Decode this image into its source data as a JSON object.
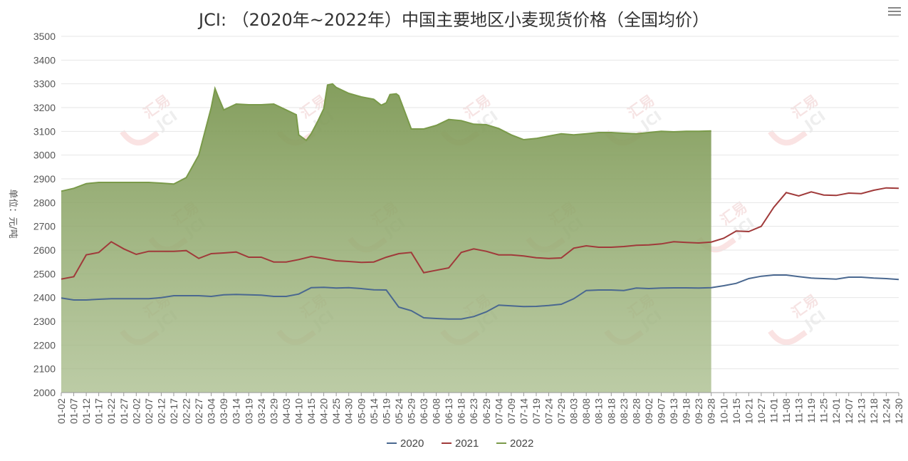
{
  "chart_data": {
    "type": "line",
    "title": "JCI: （2020年~2022年）中国主要地区小麦现货价格（全国均价）",
    "ylabel": "单位：元/吨",
    "xlabel": "",
    "ylim": [
      2000,
      3500
    ],
    "yticks": [
      2000,
      2100,
      2200,
      2300,
      2400,
      2500,
      2600,
      2700,
      2800,
      2900,
      3000,
      3100,
      3200,
      3300,
      3400,
      3500
    ],
    "grid": true,
    "legend_position": "bottom-center",
    "xlabels": [
      "01-02",
      "01-07",
      "01-12",
      "01-17",
      "01-22",
      "01-27",
      "02-02",
      "02-07",
      "02-12",
      "02-17",
      "02-22",
      "02-27",
      "03-04",
      "03-09",
      "03-14",
      "03-19",
      "03-24",
      "03-29",
      "04-03",
      "04-10",
      "04-15",
      "04-20",
      "04-25",
      "04-30",
      "05-09",
      "05-14",
      "05-19",
      "05-24",
      "05-29",
      "06-03",
      "06-08",
      "06-13",
      "06-18",
      "06-23",
      "06-29",
      "07-04",
      "07-09",
      "07-14",
      "07-19",
      "07-24",
      "07-29",
      "08-03",
      "08-08",
      "08-13",
      "08-18",
      "08-23",
      "08-28",
      "09-02",
      "09-07",
      "09-13",
      "09-18",
      "09-23",
      "09-28",
      "10-10",
      "10-15",
      "10-21",
      "10-27",
      "11-01",
      "11-08",
      "11-13",
      "11-19",
      "11-25",
      "12-01",
      "12-07",
      "12-13",
      "12-18",
      "12-24",
      "12-30"
    ],
    "series": [
      {
        "name": "2020",
        "color": "#4a6890",
        "style": "line",
        "x": [
          0,
          1,
          2,
          3,
          4,
          5,
          6,
          7,
          8,
          9,
          10,
          11,
          12,
          13,
          14,
          15,
          16,
          17,
          18,
          19,
          20,
          21,
          22,
          23,
          24,
          25,
          26,
          27,
          28,
          29,
          30,
          31,
          32,
          33,
          34,
          35,
          36,
          37,
          38,
          39,
          40,
          41,
          42,
          43,
          44,
          45,
          46,
          47,
          48,
          49,
          50,
          51,
          52,
          53,
          54,
          55,
          56,
          57,
          58,
          59,
          60,
          61,
          62,
          63,
          64,
          65,
          66,
          67
        ],
        "values": [
          2398,
          2390,
          2390,
          2393,
          2395,
          2395,
          2395,
          2395,
          2400,
          2408,
          2408,
          2408,
          2405,
          2412,
          2413,
          2412,
          2410,
          2405,
          2405,
          2415,
          2442,
          2443,
          2440,
          2442,
          2438,
          2433,
          2432,
          2360,
          2345,
          2315,
          2312,
          2310,
          2310,
          2320,
          2340,
          2368,
          2365,
          2362,
          2363,
          2367,
          2372,
          2395,
          2430,
          2432,
          2432,
          2430,
          2440,
          2438,
          2440,
          2441,
          2441,
          2440,
          2442,
          2450,
          2460,
          2480,
          2490,
          2495,
          2495,
          2488,
          2482,
          2480,
          2478,
          2486,
          2486,
          2482,
          2480,
          2476
        ]
      },
      {
        "name": "2021",
        "color": "#a03a3a",
        "style": "line",
        "x": [
          0,
          1,
          2,
          3,
          4,
          5,
          6,
          7,
          8,
          9,
          10,
          11,
          12,
          13,
          14,
          15,
          16,
          17,
          18,
          19,
          20,
          21,
          22,
          23,
          24,
          25,
          26,
          27,
          28,
          29,
          30,
          31,
          32,
          33,
          34,
          35,
          36,
          37,
          38,
          39,
          40,
          41,
          42,
          43,
          44,
          45,
          46,
          47,
          48,
          49,
          50,
          51,
          52,
          53,
          54,
          55,
          56,
          57,
          58,
          59,
          60,
          61,
          62,
          63,
          64,
          65,
          66,
          67
        ],
        "values": [
          2478,
          2488,
          2580,
          2590,
          2635,
          2605,
          2582,
          2595,
          2595,
          2595,
          2598,
          2565,
          2585,
          2588,
          2592,
          2570,
          2570,
          2550,
          2550,
          2560,
          2573,
          2565,
          2555,
          2552,
          2548,
          2550,
          2570,
          2585,
          2590,
          2505,
          2515,
          2525,
          2590,
          2605,
          2595,
          2580,
          2580,
          2575,
          2568,
          2565,
          2567,
          2608,
          2618,
          2612,
          2612,
          2615,
          2620,
          2622,
          2626,
          2635,
          2632,
          2630,
          2634,
          2650,
          2680,
          2678,
          2700,
          2780,
          2842,
          2828,
          2845,
          2832,
          2830,
          2840,
          2838,
          2852,
          2862,
          2860
        ]
      },
      {
        "name": "2022",
        "color": "#7a9a4a",
        "style": "area",
        "x": [
          0,
          1,
          2,
          3,
          4,
          5,
          6,
          7,
          8,
          9,
          10,
          11,
          12,
          12.3,
          12.6,
          13,
          14,
          15,
          16,
          17,
          18,
          18.8,
          19,
          19.6,
          20,
          20.5,
          21,
          21.3,
          21.7,
          22,
          23,
          24,
          25,
          25.6,
          26,
          26.3,
          26.8,
          27,
          28,
          29,
          30,
          31,
          32,
          33,
          34,
          35,
          36,
          37,
          38,
          39,
          40,
          41,
          42,
          43,
          44,
          45,
          46,
          47,
          48,
          49,
          50,
          51,
          52
        ],
        "values": [
          2848,
          2860,
          2880,
          2885,
          2885,
          2885,
          2885,
          2885,
          2882,
          2878,
          2905,
          3000,
          3200,
          3280,
          3240,
          3190,
          3215,
          3212,
          3212,
          3215,
          3190,
          3170,
          3085,
          3062,
          3090,
          3140,
          3195,
          3295,
          3300,
          3285,
          3260,
          3245,
          3235,
          3210,
          3220,
          3255,
          3258,
          3250,
          3110,
          3110,
          3125,
          3150,
          3145,
          3130,
          3128,
          3112,
          3085,
          3065,
          3070,
          3080,
          3090,
          3085,
          3090,
          3095,
          3095,
          3092,
          3090,
          3095,
          3100,
          3098,
          3100,
          3100,
          3102
        ]
      }
    ]
  },
  "legend": [
    {
      "label": "2020",
      "color": "#4a6890"
    },
    {
      "label": "2021",
      "color": "#a03a3a"
    },
    {
      "label": "2022",
      "color": "#7a9a4a"
    }
  ],
  "watermark": {
    "text_cn": "汇易",
    "text_en": "JCI"
  }
}
